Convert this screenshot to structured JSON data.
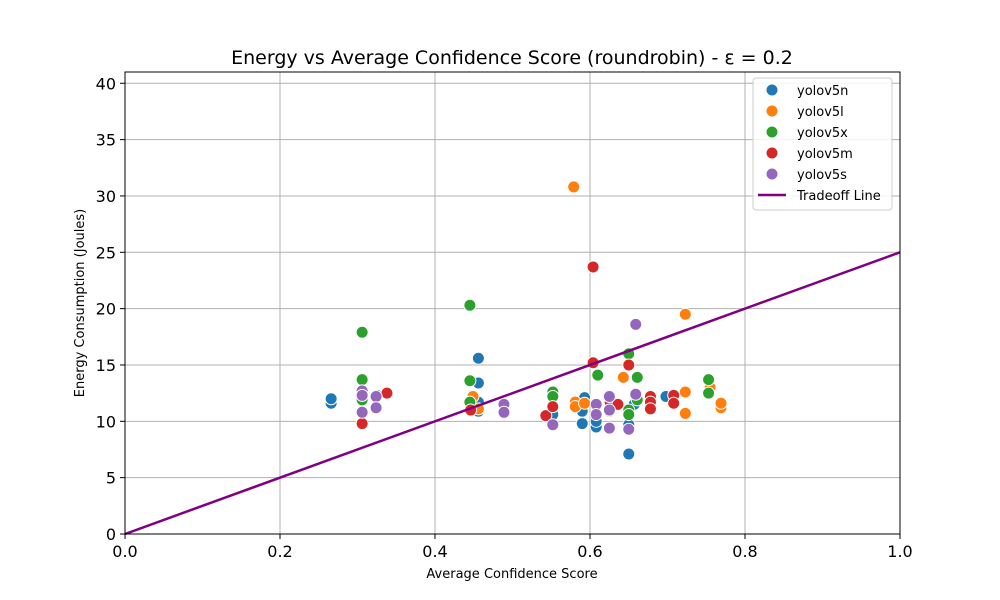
{
  "chart_data": {
    "type": "scatter",
    "title": "Energy vs Average Confidence Score (roundrobin) - ε = 0.2",
    "xlabel": "Average Confidence Score",
    "ylabel": "Energy Consumption (Joules)",
    "xlim": [
      0.0,
      1.0
    ],
    "ylim": [
      0,
      41
    ],
    "xticks": [
      "0.0",
      "0.2",
      "0.4",
      "0.6",
      "0.8",
      "1.0"
    ],
    "yticks": [
      "0",
      "5",
      "10",
      "15",
      "20",
      "25",
      "30",
      "35",
      "40"
    ],
    "grid": true,
    "legend_position": "top-right",
    "series": [
      {
        "name": "yolov5n",
        "color": "#1f77b4",
        "points": [
          [
            0.266,
            11.6
          ],
          [
            0.266,
            12.0
          ],
          [
            0.325,
            12.3
          ],
          [
            0.456,
            15.6
          ],
          [
            0.456,
            13.4
          ],
          [
            0.456,
            11.7
          ],
          [
            0.456,
            10.9
          ],
          [
            0.552,
            10.6
          ],
          [
            0.59,
            9.8
          ],
          [
            0.59,
            10.9
          ],
          [
            0.593,
            12.1
          ],
          [
            0.608,
            9.5
          ],
          [
            0.608,
            10.0
          ],
          [
            0.65,
            9.7
          ],
          [
            0.65,
            7.1
          ],
          [
            0.698,
            12.2
          ],
          [
            0.657,
            11.5
          ]
        ]
      },
      {
        "name": "yolov5l",
        "color": "#ff7f0e",
        "points": [
          [
            0.579,
            30.8
          ],
          [
            0.723,
            19.5
          ],
          [
            0.449,
            12.2
          ],
          [
            0.456,
            11.1
          ],
          [
            0.581,
            11.7
          ],
          [
            0.581,
            11.3
          ],
          [
            0.593,
            11.6
          ],
          [
            0.643,
            13.9
          ],
          [
            0.723,
            12.6
          ],
          [
            0.723,
            10.7
          ],
          [
            0.755,
            13.0
          ],
          [
            0.769,
            11.2
          ],
          [
            0.769,
            11.6
          ],
          [
            0.625,
            10.9
          ]
        ]
      },
      {
        "name": "yolov5x",
        "color": "#2ca02c",
        "points": [
          [
            0.306,
            17.9
          ],
          [
            0.306,
            13.7
          ],
          [
            0.306,
            11.9
          ],
          [
            0.445,
            20.3
          ],
          [
            0.445,
            13.6
          ],
          [
            0.445,
            11.7
          ],
          [
            0.552,
            12.6
          ],
          [
            0.552,
            12.2
          ],
          [
            0.61,
            14.1
          ],
          [
            0.65,
            16.0
          ],
          [
            0.65,
            11.0
          ],
          [
            0.65,
            10.6
          ],
          [
            0.661,
            13.9
          ],
          [
            0.661,
            11.9
          ],
          [
            0.753,
            13.7
          ],
          [
            0.753,
            12.5
          ]
        ]
      },
      {
        "name": "yolov5m",
        "color": "#d62728",
        "points": [
          [
            0.604,
            23.7
          ],
          [
            0.604,
            15.2
          ],
          [
            0.65,
            15.0
          ],
          [
            0.306,
            9.8
          ],
          [
            0.338,
            12.5
          ],
          [
            0.446,
            11.0
          ],
          [
            0.543,
            10.5
          ],
          [
            0.552,
            11.3
          ],
          [
            0.626,
            11.7
          ],
          [
            0.636,
            11.5
          ],
          [
            0.678,
            12.2
          ],
          [
            0.678,
            11.7
          ],
          [
            0.678,
            11.1
          ],
          [
            0.708,
            12.3
          ],
          [
            0.708,
            11.6
          ]
        ]
      },
      {
        "name": "yolov5s",
        "color": "#9467bd",
        "points": [
          [
            0.659,
            18.6
          ],
          [
            0.306,
            12.7
          ],
          [
            0.306,
            12.3
          ],
          [
            0.306,
            10.8
          ],
          [
            0.324,
            12.2
          ],
          [
            0.324,
            11.2
          ],
          [
            0.489,
            11.5
          ],
          [
            0.489,
            10.8
          ],
          [
            0.552,
            9.7
          ],
          [
            0.608,
            11.5
          ],
          [
            0.608,
            10.6
          ],
          [
            0.625,
            12.2
          ],
          [
            0.625,
            11.0
          ],
          [
            0.625,
            9.4
          ],
          [
            0.65,
            9.3
          ],
          [
            0.659,
            12.4
          ]
        ]
      }
    ],
    "tradeoff_line": {
      "name": "Tradeoff Line",
      "color": "#800080",
      "points": [
        [
          0.0,
          0.0
        ],
        [
          1.0,
          25.0
        ]
      ]
    }
  }
}
